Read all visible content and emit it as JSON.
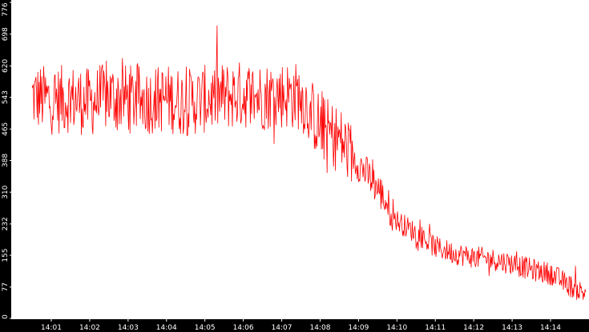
{
  "chart_data": {
    "type": "line",
    "title": "",
    "xlabel": "",
    "ylabel": "",
    "x_ticks": [
      "14:01",
      "14:02",
      "14:03",
      "14:04",
      "14:05",
      "14:06",
      "14:07",
      "14:08",
      "14:09",
      "14:10",
      "14:11",
      "14:12",
      "14:13",
      "14:14"
    ],
    "y_ticks": [
      "0",
      "77",
      "155",
      "232",
      "310",
      "388",
      "465",
      "543",
      "620",
      "698",
      "776"
    ],
    "ylim": [
      0,
      776
    ],
    "grid": false,
    "legend": "none",
    "colors": {
      "series": "#ff0000",
      "axis": "#000000",
      "background": "#ffffff",
      "tick_text": "#ffffff"
    },
    "series": [
      {
        "x": [
          "14:00:30",
          "14:01:00",
          "14:01:30",
          "14:02:00",
          "14:02:30",
          "14:03:00",
          "14:03:30",
          "14:04:00",
          "14:04:30",
          "14:05:00",
          "14:05:30",
          "14:06:00",
          "14:06:30",
          "14:07:00",
          "14:07:30",
          "14:08:00",
          "14:08:30",
          "14:09:00",
          "14:09:30",
          "14:10:00",
          "14:10:30",
          "14:11:00",
          "14:11:30",
          "14:12:00",
          "14:12:30",
          "14:13:00",
          "14:13:30",
          "14:14:00",
          "14:14:30",
          "14:14:55"
        ],
        "values": [
          545,
          535,
          540,
          530,
          545,
          540,
          535,
          540,
          530,
          538,
          545,
          550,
          545,
          550,
          545,
          470,
          440,
          380,
          320,
          240,
          210,
          175,
          160,
          150,
          145,
          135,
          120,
          110,
          80,
          60
        ]
      }
    ]
  }
}
